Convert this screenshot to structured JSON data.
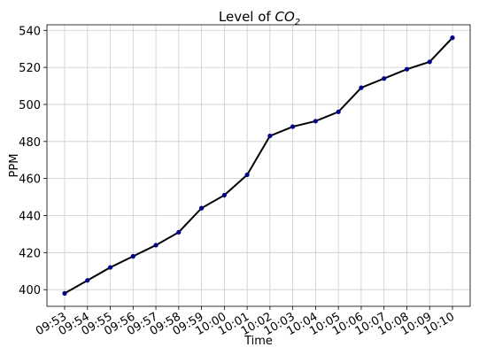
{
  "chart_data": {
    "type": "line",
    "title_prefix": "Level of ",
    "title_math": "CO",
    "title_subscript": "2",
    "xlabel": "Time",
    "ylabel": "PPM",
    "categories": [
      "09:53",
      "09:54",
      "09:55",
      "09:56",
      "09:57",
      "09:58",
      "09:59",
      "10:00",
      "10:01",
      "10:02",
      "10:03",
      "10:04",
      "10:05",
      "10:06",
      "10:07",
      "10:08",
      "10:09",
      "10:10"
    ],
    "series": [
      {
        "values": [
          398,
          405,
          412,
          418,
          424,
          431,
          444,
          451,
          462,
          483,
          488,
          491,
          496,
          509,
          514,
          519,
          523,
          536
        ]
      }
    ],
    "ylim": [
      391,
      543
    ],
    "yticks": [
      400,
      420,
      440,
      460,
      480,
      500,
      520,
      540
    ],
    "grid": true,
    "line_color": "#000000",
    "marker_color": "#00008b"
  }
}
